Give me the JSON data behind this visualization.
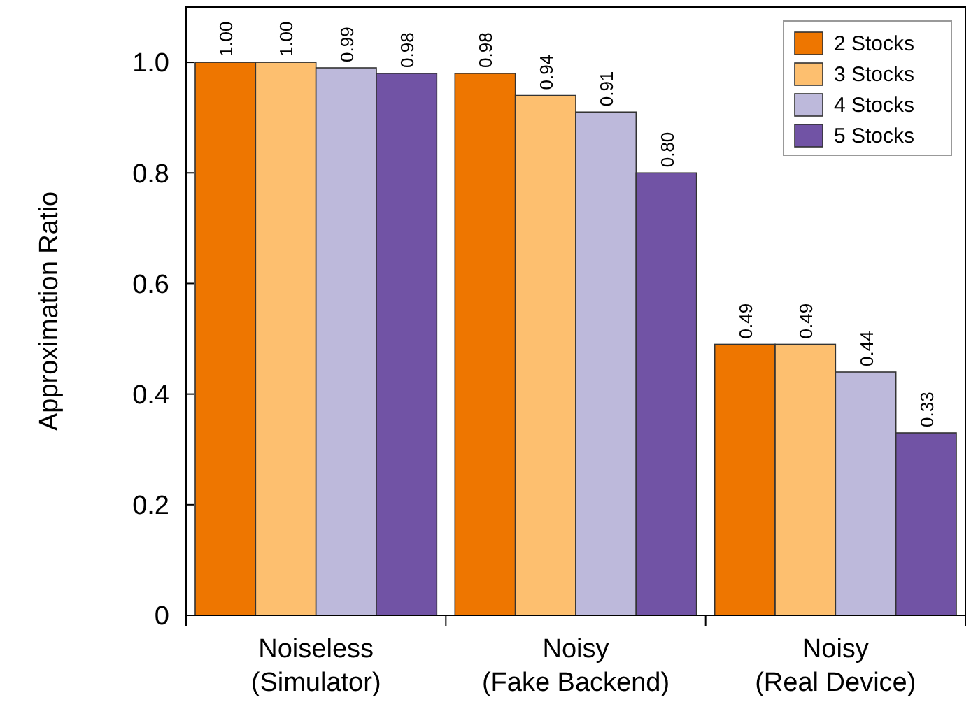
{
  "chart_data": {
    "type": "bar",
    "ylabel": "Approximation Ratio",
    "categories": [
      "Noiseless\n(Simulator)",
      "Noisy\n(Fake Backend)",
      "Noisy\n(Real Device)"
    ],
    "series": [
      {
        "name": "2 Stocks",
        "color": "#ee7600",
        "values": [
          1.0,
          0.98,
          0.49
        ]
      },
      {
        "name": "3 Stocks",
        "color": "#fdbf6f",
        "values": [
          1.0,
          0.94,
          0.49
        ]
      },
      {
        "name": "4 Stocks",
        "color": "#bdb9db",
        "values": [
          0.99,
          0.91,
          0.44
        ]
      },
      {
        "name": "5 Stocks",
        "color": "#7153a5",
        "values": [
          0.98,
          0.8,
          0.33
        ]
      }
    ],
    "value_labels": [
      [
        "1.00",
        "0.98",
        "0.49"
      ],
      [
        "1.00",
        "0.94",
        "0.49"
      ],
      [
        "0.99",
        "0.91",
        "0.44"
      ],
      [
        "0.98",
        "0.80",
        "0.33"
      ]
    ],
    "ylim": [
      0,
      1.1
    ],
    "yticks": [
      0,
      0.2,
      0.4,
      0.6,
      0.8,
      {
        "value": 1,
        "label": "1.0"
      }
    ],
    "legend": "top right",
    "grid": false
  }
}
